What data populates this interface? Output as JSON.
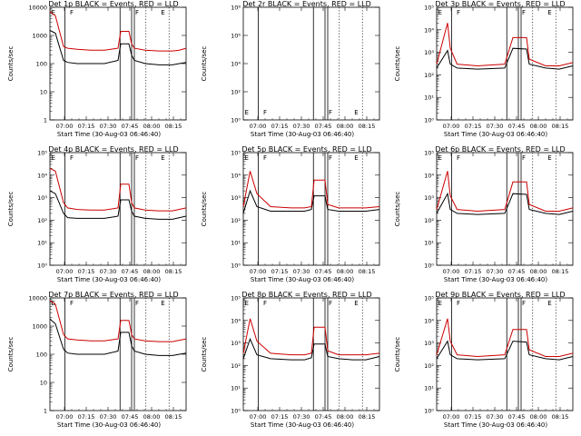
{
  "colors": {
    "events": "#000000",
    "lld": "#cc0000",
    "background": "#ffffff"
  },
  "time_ticks": [
    "07:00",
    "07:15",
    "07:30",
    "07:45",
    "08:00",
    "08:15"
  ],
  "xlabel": "Start Time (30-Aug-03 06:46:40)",
  "ylabel": "Counts/sec",
  "markers": {
    "solid": [
      0.11,
      0.515,
      0.6,
      0.62
    ],
    "dotted": [
      0.705,
      0.875
    ],
    "letters": [
      {
        "text": "E",
        "pos": 0.025
      },
      {
        "text": "F",
        "pos": 0.16
      },
      {
        "text": "F",
        "pos": 0.64
      },
      {
        "text": "E",
        "pos": 0.83
      }
    ]
  },
  "chart_data": [
    {
      "type": "line",
      "title": "Det 1p BLACK = Events, RED = LLD",
      "yscale": "log",
      "ylim": [
        1,
        10000
      ],
      "yticks": [
        "1",
        "10",
        "100",
        "1000",
        "10000"
      ],
      "profile": "early",
      "series": [
        {
          "color": "#000000",
          "points": [
            [
              0,
              1500
            ],
            [
              0.04,
              1200
            ],
            [
              0.1,
              130
            ],
            [
              0.13,
              110
            ],
            [
              0.2,
              100
            ],
            [
              0.3,
              100
            ],
            [
              0.4,
              100
            ],
            [
              0.5,
              130
            ],
            [
              0.52,
              500
            ],
            [
              0.58,
              500
            ],
            [
              0.6,
              200
            ],
            [
              0.62,
              130
            ],
            [
              0.7,
              100
            ],
            [
              0.8,
              90
            ],
            [
              0.9,
              90
            ],
            [
              0.95,
              100
            ],
            [
              1,
              110
            ]
          ]
        },
        {
          "color": "#cc0000",
          "points": [
            [
              0,
              7000
            ],
            [
              0.04,
              5000
            ],
            [
              0.1,
              400
            ],
            [
              0.13,
              350
            ],
            [
              0.2,
              320
            ],
            [
              0.3,
              300
            ],
            [
              0.4,
              300
            ],
            [
              0.5,
              350
            ],
            [
              0.52,
              1400
            ],
            [
              0.58,
              1400
            ],
            [
              0.6,
              500
            ],
            [
              0.62,
              350
            ],
            [
              0.7,
              300
            ],
            [
              0.8,
              280
            ],
            [
              0.9,
              280
            ],
            [
              0.95,
              300
            ],
            [
              1,
              350
            ]
          ]
        }
      ]
    },
    {
      "type": "line",
      "title": "Det 2r BLACK = Events, RED = LLD",
      "yscale": "log",
      "ylim": [
        1,
        100000000
      ],
      "yticks": [
        "10⁰",
        "10²",
        "10⁴",
        "10⁶",
        "10⁸"
      ],
      "profile": "empty",
      "series": []
    },
    {
      "type": "line",
      "title": "Det 3p BLACK = Events, RED = LLD",
      "yscale": "log",
      "ylim": [
        1,
        100000
      ],
      "yticks": [
        "10⁰",
        "10¹",
        "10²",
        "10³",
        "10⁴",
        "10⁵"
      ],
      "profile": "late",
      "series": [
        {
          "color": "#000000",
          "points": [
            [
              0,
              200
            ],
            [
              0.08,
              1200
            ],
            [
              0.1,
              300
            ],
            [
              0.15,
              200
            ],
            [
              0.3,
              180
            ],
            [
              0.5,
              200
            ],
            [
              0.56,
              1500
            ],
            [
              0.66,
              1400
            ],
            [
              0.68,
              300
            ],
            [
              0.8,
              200
            ],
            [
              0.9,
              180
            ],
            [
              1,
              250
            ]
          ]
        },
        {
          "color": "#cc0000",
          "points": [
            [
              0,
              300
            ],
            [
              0.08,
              20000
            ],
            [
              0.1,
              1500
            ],
            [
              0.15,
              300
            ],
            [
              0.3,
              250
            ],
            [
              0.5,
              300
            ],
            [
              0.56,
              4500
            ],
            [
              0.66,
              4500
            ],
            [
              0.68,
              500
            ],
            [
              0.8,
              250
            ],
            [
              0.9,
              250
            ],
            [
              1,
              350
            ]
          ]
        }
      ]
    },
    {
      "type": "line",
      "title": "Det 4p BLACK = Events, RED = LLD",
      "yscale": "log",
      "ylim": [
        1,
        100000
      ],
      "yticks": [
        "10⁰",
        "10¹",
        "10²",
        "10³",
        "10⁴",
        "10⁵"
      ],
      "profile": "early",
      "series": [
        {
          "color": "#000000",
          "points": [
            [
              0,
              2000
            ],
            [
              0.04,
              1500
            ],
            [
              0.1,
              200
            ],
            [
              0.13,
              130
            ],
            [
              0.2,
              120
            ],
            [
              0.3,
              120
            ],
            [
              0.4,
              120
            ],
            [
              0.5,
              150
            ],
            [
              0.52,
              800
            ],
            [
              0.58,
              800
            ],
            [
              0.6,
              250
            ],
            [
              0.62,
              150
            ],
            [
              0.7,
              120
            ],
            [
              0.8,
              110
            ],
            [
              0.9,
              110
            ],
            [
              1,
              150
            ]
          ]
        },
        {
          "color": "#cc0000",
          "points": [
            [
              0,
              20000
            ],
            [
              0.04,
              15000
            ],
            [
              0.1,
              600
            ],
            [
              0.13,
              350
            ],
            [
              0.2,
              300
            ],
            [
              0.3,
              280
            ],
            [
              0.4,
              280
            ],
            [
              0.5,
              350
            ],
            [
              0.52,
              4000
            ],
            [
              0.58,
              4000
            ],
            [
              0.6,
              600
            ],
            [
              0.62,
              350
            ],
            [
              0.7,
              280
            ],
            [
              0.8,
              260
            ],
            [
              0.9,
              260
            ],
            [
              1,
              350
            ]
          ]
        }
      ]
    },
    {
      "type": "line",
      "title": "Det 5p BLACK = Events, RED = LLD",
      "yscale": "log",
      "ylim": [
        1,
        100000
      ],
      "yticks": [
        "10⁰",
        "10¹",
        "10²",
        "10³",
        "10⁴",
        "10⁵"
      ],
      "profile": "mid",
      "series": [
        {
          "color": "#000000",
          "points": [
            [
              0,
              200
            ],
            [
              0.05,
              2000
            ],
            [
              0.1,
              400
            ],
            [
              0.2,
              250
            ],
            [
              0.35,
              250
            ],
            [
              0.45,
              250
            ],
            [
              0.5,
              300
            ],
            [
              0.52,
              1200
            ],
            [
              0.6,
              1200
            ],
            [
              0.62,
              300
            ],
            [
              0.7,
              250
            ],
            [
              0.8,
              250
            ],
            [
              0.9,
              250
            ],
            [
              1,
              300
            ]
          ]
        },
        {
          "color": "#cc0000",
          "points": [
            [
              0,
              400
            ],
            [
              0.05,
              15000
            ],
            [
              0.1,
              1500
            ],
            [
              0.2,
              400
            ],
            [
              0.35,
              350
            ],
            [
              0.45,
              350
            ],
            [
              0.5,
              400
            ],
            [
              0.52,
              6000
            ],
            [
              0.6,
              6000
            ],
            [
              0.62,
              500
            ],
            [
              0.7,
              350
            ],
            [
              0.8,
              350
            ],
            [
              0.9,
              350
            ],
            [
              1,
              400
            ]
          ]
        }
      ]
    },
    {
      "type": "line",
      "title": "Det 6p BLACK = Events, RED = LLD",
      "yscale": "log",
      "ylim": [
        1,
        100000
      ],
      "yticks": [
        "10⁰",
        "10¹",
        "10²",
        "10³",
        "10⁴",
        "10⁵"
      ],
      "profile": "late",
      "series": [
        {
          "color": "#000000",
          "points": [
            [
              0,
              200
            ],
            [
              0.08,
              1500
            ],
            [
              0.1,
              300
            ],
            [
              0.15,
              200
            ],
            [
              0.3,
              180
            ],
            [
              0.5,
              200
            ],
            [
              0.56,
              1500
            ],
            [
              0.66,
              1400
            ],
            [
              0.68,
              300
            ],
            [
              0.8,
              200
            ],
            [
              0.9,
              180
            ],
            [
              1,
              250
            ]
          ]
        },
        {
          "color": "#cc0000",
          "points": [
            [
              0,
              300
            ],
            [
              0.08,
              15000
            ],
            [
              0.1,
              1200
            ],
            [
              0.15,
              300
            ],
            [
              0.3,
              250
            ],
            [
              0.5,
              300
            ],
            [
              0.56,
              5000
            ],
            [
              0.66,
              5000
            ],
            [
              0.68,
              500
            ],
            [
              0.8,
              250
            ],
            [
              0.9,
              250
            ],
            [
              1,
              350
            ]
          ]
        }
      ]
    },
    {
      "type": "line",
      "title": "Det 7p BLACK = Events, RED = LLD",
      "yscale": "log",
      "ylim": [
        1,
        10000
      ],
      "yticks": [
        "1",
        "10",
        "100",
        "1000",
        "10000"
      ],
      "profile": "early",
      "series": [
        {
          "color": "#000000",
          "points": [
            [
              0,
              1800
            ],
            [
              0.04,
              1200
            ],
            [
              0.1,
              150
            ],
            [
              0.13,
              110
            ],
            [
              0.2,
              100
            ],
            [
              0.3,
              100
            ],
            [
              0.4,
              100
            ],
            [
              0.5,
              130
            ],
            [
              0.52,
              600
            ],
            [
              0.58,
              600
            ],
            [
              0.6,
              200
            ],
            [
              0.62,
              130
            ],
            [
              0.7,
              100
            ],
            [
              0.8,
              90
            ],
            [
              0.9,
              90
            ],
            [
              1,
              110
            ]
          ]
        },
        {
          "color": "#cc0000",
          "points": [
            [
              0,
              8000
            ],
            [
              0.04,
              6000
            ],
            [
              0.1,
              500
            ],
            [
              0.13,
              350
            ],
            [
              0.2,
              320
            ],
            [
              0.3,
              300
            ],
            [
              0.4,
              300
            ],
            [
              0.5,
              350
            ],
            [
              0.52,
              1600
            ],
            [
              0.58,
              1600
            ],
            [
              0.6,
              500
            ],
            [
              0.62,
              350
            ],
            [
              0.7,
              300
            ],
            [
              0.8,
              280
            ],
            [
              0.9,
              280
            ],
            [
              1,
              350
            ]
          ]
        }
      ]
    },
    {
      "type": "line",
      "title": "Det 8p BLACK = Events, RED = LLD",
      "yscale": "log",
      "ylim": [
        1,
        100000
      ],
      "yticks": [
        "10⁰",
        "10¹",
        "10²",
        "10³",
        "10⁴",
        "10⁵"
      ],
      "profile": "mid",
      "series": [
        {
          "color": "#000000",
          "points": [
            [
              0,
              200
            ],
            [
              0.05,
              1500
            ],
            [
              0.1,
              300
            ],
            [
              0.2,
              200
            ],
            [
              0.35,
              180
            ],
            [
              0.45,
              180
            ],
            [
              0.5,
              220
            ],
            [
              0.52,
              900
            ],
            [
              0.6,
              900
            ],
            [
              0.62,
              250
            ],
            [
              0.7,
              200
            ],
            [
              0.8,
              180
            ],
            [
              0.9,
              180
            ],
            [
              1,
              250
            ]
          ]
        },
        {
          "color": "#cc0000",
          "points": [
            [
              0,
              350
            ],
            [
              0.05,
              12000
            ],
            [
              0.1,
              1200
            ],
            [
              0.2,
              350
            ],
            [
              0.35,
              300
            ],
            [
              0.45,
              300
            ],
            [
              0.5,
              350
            ],
            [
              0.52,
              5000
            ],
            [
              0.6,
              5000
            ],
            [
              0.62,
              450
            ],
            [
              0.7,
              300
            ],
            [
              0.8,
              300
            ],
            [
              0.9,
              300
            ],
            [
              1,
              350
            ]
          ]
        }
      ]
    },
    {
      "type": "line",
      "title": "Det 9p BLACK = Events, RED = LLD",
      "yscale": "log",
      "ylim": [
        1,
        100000
      ],
      "yticks": [
        "10⁰",
        "10¹",
        "10²",
        "10³",
        "10⁴",
        "10⁵"
      ],
      "profile": "late",
      "series": [
        {
          "color": "#000000",
          "points": [
            [
              0,
              200
            ],
            [
              0.08,
              1200
            ],
            [
              0.1,
              300
            ],
            [
              0.15,
              200
            ],
            [
              0.3,
              180
            ],
            [
              0.5,
              200
            ],
            [
              0.56,
              1200
            ],
            [
              0.66,
              1100
            ],
            [
              0.68,
              300
            ],
            [
              0.8,
              200
            ],
            [
              0.9,
              180
            ],
            [
              1,
              250
            ]
          ]
        },
        {
          "color": "#cc0000",
          "points": [
            [
              0,
              300
            ],
            [
              0.08,
              12000
            ],
            [
              0.1,
              1200
            ],
            [
              0.15,
              300
            ],
            [
              0.3,
              250
            ],
            [
              0.5,
              300
            ],
            [
              0.56,
              4000
            ],
            [
              0.66,
              4000
            ],
            [
              0.68,
              500
            ],
            [
              0.8,
              250
            ],
            [
              0.9,
              250
            ],
            [
              1,
              350
            ]
          ]
        }
      ]
    }
  ]
}
